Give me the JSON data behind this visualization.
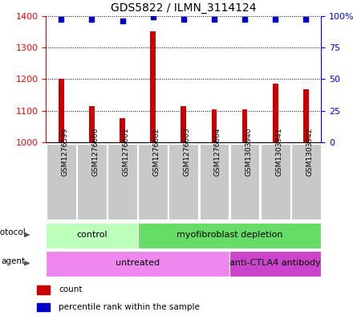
{
  "title": "GDS5822 / ILMN_3114124",
  "samples": [
    "GSM1276599",
    "GSM1276600",
    "GSM1276601",
    "GSM1276602",
    "GSM1276603",
    "GSM1276604",
    "GSM1303940",
    "GSM1303941",
    "GSM1303942"
  ],
  "counts": [
    1200,
    1115,
    1075,
    1352,
    1113,
    1105,
    1103,
    1185,
    1168
  ],
  "percentile_ranks": [
    97,
    97,
    96,
    99,
    97,
    97,
    97,
    97,
    97
  ],
  "ylim_left": [
    1000,
    1400
  ],
  "ylim_right": [
    0,
    100
  ],
  "yticks_left": [
    1000,
    1100,
    1200,
    1300,
    1400
  ],
  "yticks_right": [
    0,
    25,
    50,
    75,
    100
  ],
  "protocol_labels": [
    "control",
    "myofibroblast depletion"
  ],
  "protocol_colors": [
    "#bbffbb",
    "#66dd66"
  ],
  "agent_labels": [
    "untreated",
    "anti-CTLA4 antibody"
  ],
  "agent_colors": [
    "#ee88ee",
    "#cc44cc"
  ],
  "bar_color": "#cc0000",
  "dot_color": "#0000cc",
  "bar_width": 0.18,
  "plot_bg": "#ffffff",
  "label_bg": "#cccccc",
  "legend_red": "count",
  "legend_blue": "percentile rank within the sample",
  "label_cell_color": "#c8c8c8"
}
